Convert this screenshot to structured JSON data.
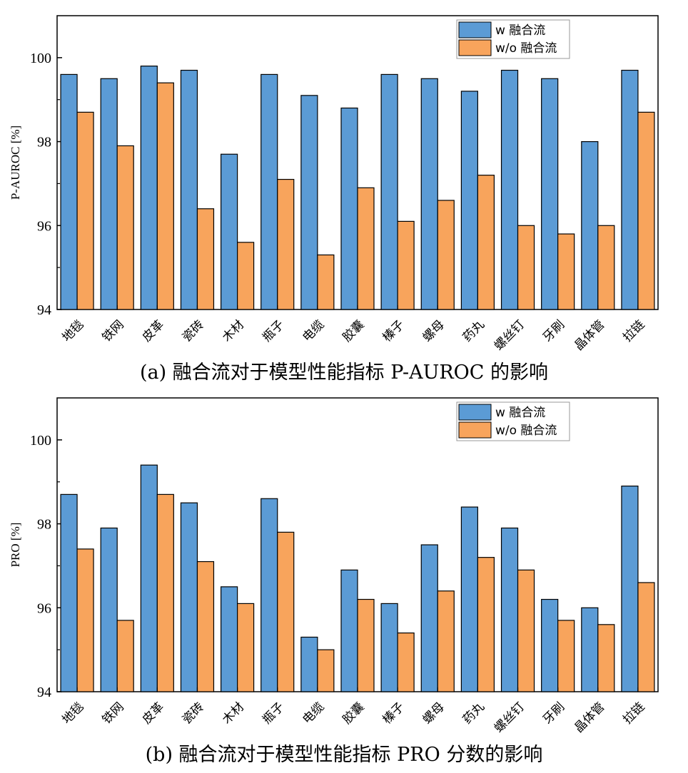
{
  "captions": {
    "a": "(a) 融合流对于模型性能指标 P-AUROC 的影响",
    "b": "(b) 融合流对于模型性能指标 PRO 分数的影响"
  },
  "colors": {
    "with": "#5b9bd5",
    "without": "#f8a45c",
    "axis": "#000000"
  },
  "chart_data": [
    {
      "type": "bar",
      "title": "",
      "xlabel": "",
      "ylabel": "P-AUROC [%]",
      "ylim": [
        94,
        101
      ],
      "yticks": [
        94,
        96,
        98,
        100
      ],
      "legend_position": "top-right",
      "categories": [
        "地毯",
        "铁网",
        "皮革",
        "瓷砖",
        "木材",
        "瓶子",
        "电缆",
        "胶囊",
        "榛子",
        "螺母",
        "药丸",
        "螺丝钉",
        "牙刷",
        "晶体管",
        "拉链"
      ],
      "series": [
        {
          "name": "w 融合流",
          "values": [
            99.6,
            99.5,
            99.8,
            99.7,
            97.7,
            99.6,
            99.1,
            98.8,
            99.6,
            99.5,
            99.2,
            99.7,
            99.5,
            98.0,
            99.7
          ]
        },
        {
          "name": "w/o 融合流",
          "values": [
            98.7,
            97.9,
            99.4,
            96.4,
            95.6,
            97.1,
            95.3,
            96.9,
            96.1,
            96.6,
            97.2,
            96.0,
            95.8,
            96.0,
            98.7
          ]
        }
      ]
    },
    {
      "type": "bar",
      "title": "",
      "xlabel": "",
      "ylabel": "PRO [%]",
      "ylim": [
        94,
        101
      ],
      "yticks": [
        94,
        96,
        98,
        100
      ],
      "legend_position": "top-right",
      "categories": [
        "地毯",
        "铁网",
        "皮革",
        "瓷砖",
        "木材",
        "瓶子",
        "电缆",
        "胶囊",
        "榛子",
        "螺母",
        "药丸",
        "螺丝钉",
        "牙刷",
        "晶体管",
        "拉链"
      ],
      "series": [
        {
          "name": "w 融合流",
          "values": [
            98.7,
            97.9,
            99.4,
            98.5,
            96.5,
            98.6,
            95.3,
            96.9,
            96.1,
            97.5,
            98.4,
            97.9,
            96.2,
            96.0,
            98.9
          ]
        },
        {
          "name": "w/o 融合流",
          "values": [
            97.4,
            95.7,
            98.7,
            97.1,
            96.1,
            97.8,
            95.0,
            96.2,
            95.4,
            96.4,
            97.2,
            96.9,
            95.7,
            95.6,
            96.6
          ]
        }
      ]
    }
  ]
}
